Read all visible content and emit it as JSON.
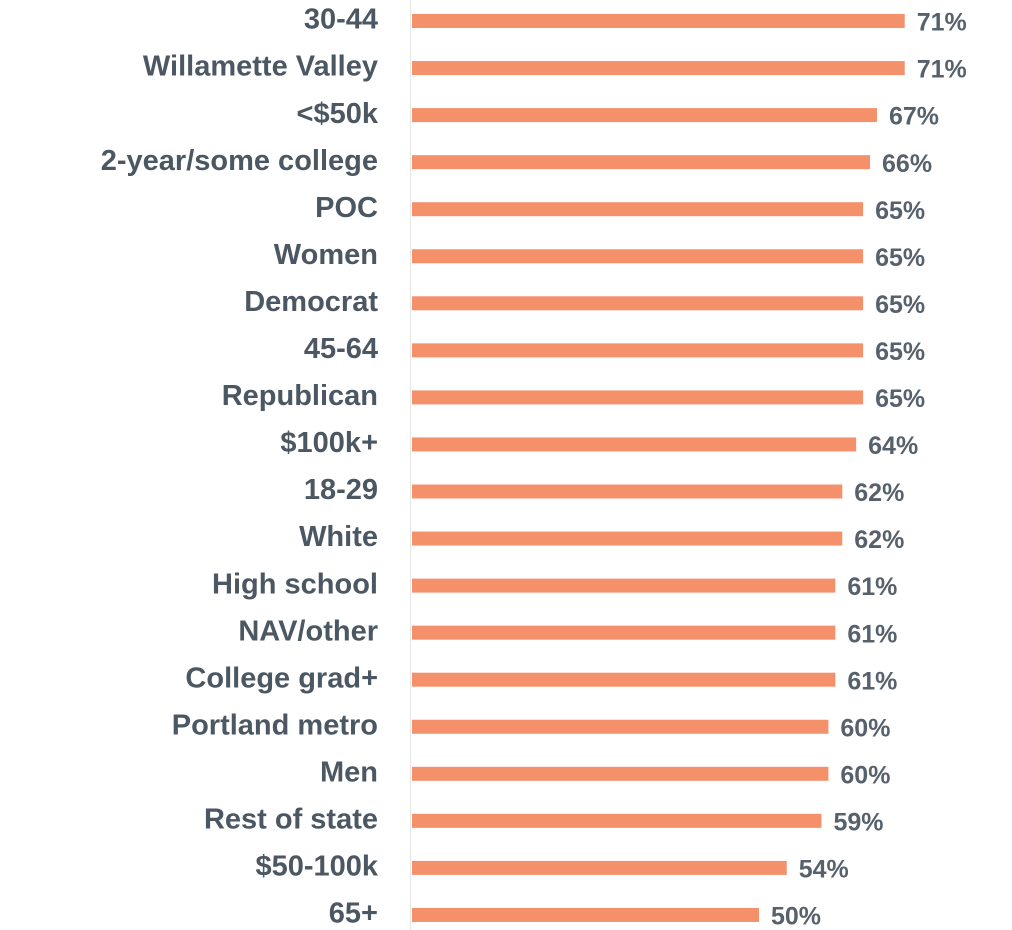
{
  "chart_data": {
    "type": "hbar",
    "color": "#f4916b",
    "categories": [
      "30-44",
      "Willamette Valley",
      "<$50k",
      "2-year/some college",
      "POC",
      "Women",
      "Democrat",
      "45-64",
      "Republican",
      "$100k+",
      "18-29",
      "White",
      "High school",
      "NAV/other",
      "College grad+",
      "Portland metro",
      "Men",
      "Rest of state",
      "$50-100k",
      "65+"
    ],
    "values": [
      71,
      71,
      67,
      66,
      65,
      65,
      65,
      65,
      65,
      64,
      62,
      62,
      61,
      61,
      61,
      60,
      60,
      59,
      54,
      50
    ],
    "value_labels": [
      "71%",
      "71%",
      "67%",
      "66%",
      "65%",
      "65%",
      "65%",
      "65%",
      "65%",
      "64%",
      "62%",
      "62%",
      "61%",
      "61%",
      "61%",
      "60%",
      "60%",
      "59%",
      "54%",
      "50%"
    ]
  }
}
